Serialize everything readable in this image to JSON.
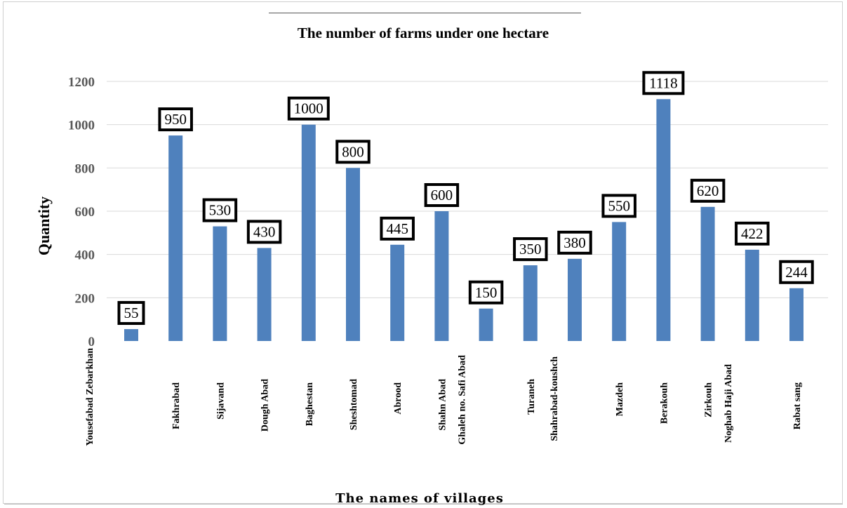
{
  "chart_data": {
    "type": "bar",
    "title": "The number of farms under one hectare",
    "xlabel": "The names of villages",
    "ylabel": "Quantity",
    "ylim": [
      0,
      1200
    ],
    "yticks": [
      0,
      200,
      400,
      600,
      800,
      1000,
      1200
    ],
    "grid": true,
    "categories": [
      "Yousefabad Zebarkhan",
      "Fakhrabad",
      "Sijavand",
      "Dough Abad",
      "Baghestan",
      "Sheshtomad",
      "Abrood",
      "Shahn Abad",
      "Ghaleh no. Safi Abad",
      "Turaneh",
      "Shahrabad-koushch",
      "Mazdeh",
      "Berakouh",
      "Zirkouh",
      "Noghab Haji Abad",
      "Rabat sang"
    ],
    "values": [
      55,
      950,
      530,
      430,
      1000,
      800,
      445,
      600,
      150,
      350,
      380,
      550,
      1118,
      620,
      422,
      244
    ],
    "bar_color": "#4f81bd"
  }
}
